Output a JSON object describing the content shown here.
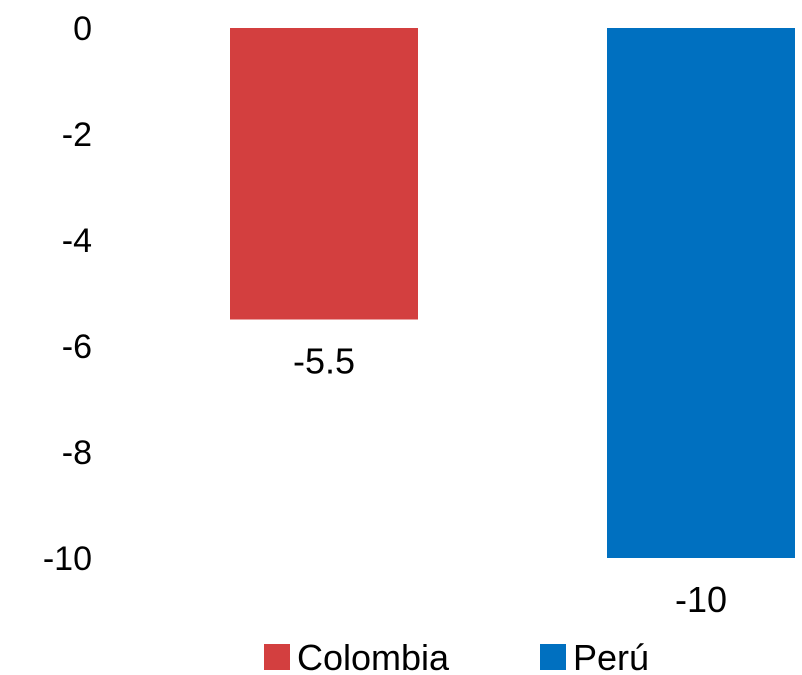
{
  "chart_data": {
    "type": "bar",
    "title": "",
    "xlabel": "",
    "ylabel": "",
    "ylim": [
      -10,
      0
    ],
    "yticks": [
      0,
      -2,
      -4,
      -6,
      -8,
      -10
    ],
    "grid": false,
    "legend_position": "bottom",
    "series": [
      {
        "name": "Colombia",
        "value": -5.5,
        "label": "-5.5",
        "color": "#d33f3f"
      },
      {
        "name": "Perú",
        "value": -10,
        "label": "-10",
        "color": "#0070c0"
      }
    ]
  }
}
